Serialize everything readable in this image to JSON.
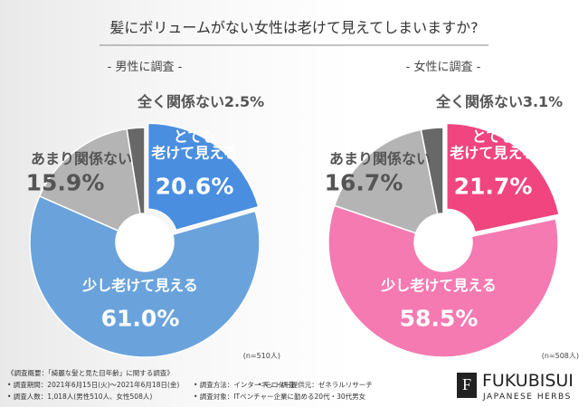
{
  "title": "髪にボリュームがない女性は老けて見えてしまいますか?",
  "chart_data": [
    {
      "type": "pie",
      "subtitle": "- 男性に調査 -",
      "note": "(n=510人)",
      "categories": [
        "とても\n老けて見える",
        "少し老けて見える",
        "あまり関係ない",
        "全く関係ない"
      ],
      "values": [
        20.6,
        61.0,
        15.9,
        2.5
      ],
      "value_labels": [
        "20.6%",
        "61.0%",
        "15.9%",
        "2.5%"
      ],
      "colors": [
        "#4a8ee0",
        "#6aa3dc",
        "#b4b4b4",
        "#686868"
      ]
    },
    {
      "type": "pie",
      "subtitle": "- 女性に調査 -",
      "note": "(n=508人)",
      "categories": [
        "とても\n老けて見える",
        "少し老けて見える",
        "あまり関係ない",
        "全く関係ない"
      ],
      "values": [
        21.7,
        58.5,
        16.7,
        3.1
      ],
      "value_labels": [
        "21.7%",
        "58.5%",
        "16.7%",
        "3.1%"
      ],
      "colors": [
        "#f0457f",
        "#f47ab1",
        "#b4b4b4",
        "#686868"
      ]
    }
  ],
  "footer": {
    "lines": [
      "《調査概要：「綺麗な髪と見た目年齢」に関する調査》",
      "• 調査期間：2021年6月15日(火)〜2021年6月18日(金)",
      "• 調査方法：インターネット調査",
      "• モニター提供元：ゼネラルリサーチ",
      "• 調査人数：1,018人(男性510人、女性508人)",
      "• 調査対象：ITベンチャー企業に勤める20代・30代男女"
    ],
    "logo": "FUKUBISUI",
    "logo_sub": "JAPANESE HERBS",
    "logo_mark": "F"
  }
}
